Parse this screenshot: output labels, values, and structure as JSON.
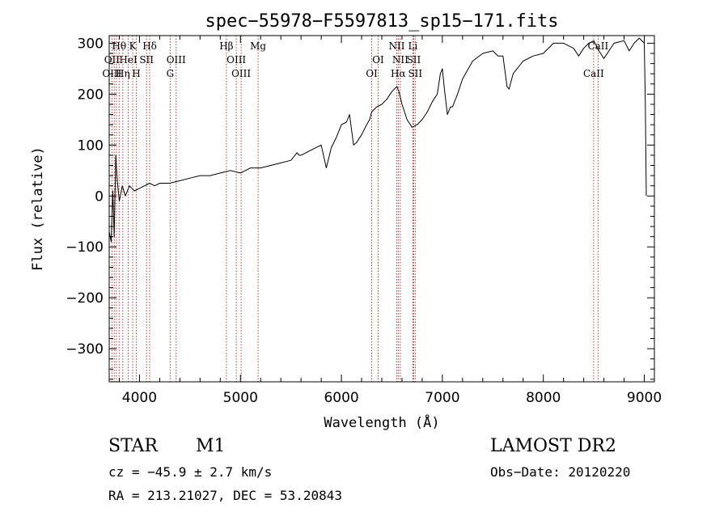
{
  "chart_data": {
    "type": "line",
    "title": "spec−55978−F5597813_sp15−171.fits",
    "xlabel": "Wavelength (Å)",
    "ylabel": "Flux (relative)",
    "xlim": [
      3700,
      9100
    ],
    "ylim": [
      -365,
      315
    ],
    "xticks": [
      4000,
      5000,
      6000,
      7000,
      8000,
      9000
    ],
    "yticks": [
      300,
      200,
      100,
      0,
      -100,
      -200,
      -300
    ],
    "ytick_labels": [
      "300",
      "200",
      "100",
      "0",
      "−100",
      "−200",
      "−300"
    ],
    "line_color": "#000000",
    "marker_color": "#c0392b",
    "series": [
      {
        "x": [
          3700,
          3720,
          3735,
          3750,
          3765,
          3780,
          3800,
          3830,
          3860,
          3900,
          3950,
          4000,
          4050,
          4100,
          4150,
          4200,
          4300,
          4400,
          4500,
          4600,
          4700,
          4800,
          4900,
          5000,
          5100,
          5200,
          5300,
          5400,
          5500,
          5560,
          5580,
          5600,
          5700,
          5800,
          5850,
          5900,
          5950,
          6000,
          6050,
          6080,
          6100,
          6120,
          6150,
          6200,
          6250,
          6280,
          6300,
          6350,
          6400,
          6450,
          6500,
          6550,
          6570,
          6600,
          6650,
          6700,
          6750,
          6800,
          6850,
          6900,
          6950,
          6980,
          7000,
          7020,
          7050,
          7080,
          7100,
          7150,
          7200,
          7300,
          7400,
          7500,
          7550,
          7600,
          7640,
          7660,
          7700,
          7800,
          7900,
          8000,
          8100,
          8200,
          8300,
          8350,
          8400,
          8450,
          8500,
          8550,
          8600,
          8700,
          8800,
          8850,
          8900,
          8950,
          9000,
          9010,
          9020
        ],
        "y": [
          -70,
          -90,
          10,
          -80,
          80,
          30,
          -10,
          20,
          0,
          20,
          10,
          15,
          20,
          25,
          20,
          25,
          25,
          30,
          35,
          40,
          40,
          45,
          50,
          45,
          55,
          55,
          60,
          65,
          70,
          85,
          80,
          80,
          90,
          100,
          55,
          95,
          115,
          140,
          145,
          160,
          130,
          100,
          105,
          120,
          140,
          150,
          165,
          175,
          180,
          190,
          205,
          215,
          205,
          180,
          150,
          135,
          140,
          150,
          165,
          185,
          200,
          240,
          250,
          210,
          160,
          175,
          175,
          200,
          230,
          265,
          280,
          285,
          275,
          275,
          215,
          210,
          240,
          265,
          275,
          280,
          300,
          300,
          290,
          275,
          290,
          300,
          305,
          285,
          270,
          300,
          305,
          285,
          300,
          310,
          300,
          180,
          0
        ]
      }
    ],
    "spectral_lines": [
      {
        "label": "Hθ",
        "x": 3798,
        "row": 1
      },
      {
        "label": "K",
        "x": 3933,
        "row": 1
      },
      {
        "label": "Hδ",
        "x": 4101,
        "row": 1
      },
      {
        "label": "Hβ",
        "x": 4861,
        "row": 1
      },
      {
        "label": "Mg",
        "x": 5175,
        "row": 1
      },
      {
        "label": "NII",
        "x": 6548,
        "row": 1
      },
      {
        "label": "Li",
        "x": 6708,
        "row": 1
      },
      {
        "label": "CaII",
        "x": 8542,
        "row": 1
      },
      {
        "label": "OII",
        "x": 3727,
        "row": 2
      },
      {
        "label": "HeI",
        "x": 3889,
        "row": 2
      },
      {
        "label": "SII",
        "x": 4070,
        "row": 2
      },
      {
        "label": "OIII",
        "x": 4363,
        "row": 2
      },
      {
        "label": "OIII",
        "x": 4959,
        "row": 2
      },
      {
        "label": "OI",
        "x": 6364,
        "row": 2
      },
      {
        "label": "NII",
        "x": 6583,
        "row": 2
      },
      {
        "label": "SII",
        "x": 6716,
        "row": 2
      },
      {
        "label": "OIII",
        "x": 3727,
        "row": 3
      },
      {
        "label": "Hη",
        "x": 3835,
        "row": 3
      },
      {
        "label": "H",
        "x": 3968,
        "row": 3
      },
      {
        "label": "G",
        "x": 4304,
        "row": 3
      },
      {
        "label": "OIII",
        "x": 5007,
        "row": 3
      },
      {
        "label": "OI",
        "x": 6300,
        "row": 3
      },
      {
        "label": "Hα",
        "x": 6563,
        "row": 3
      },
      {
        "label": "SII",
        "x": 6731,
        "row": 3
      },
      {
        "label": "CaII",
        "x": 8498,
        "row": 3
      }
    ],
    "marker_x": [
      3727,
      3750,
      3771,
      3798,
      3835,
      3889,
      3933,
      3968,
      4070,
      4101,
      4304,
      4363,
      4861,
      4959,
      5007,
      5175,
      6300,
      6364,
      6548,
      6563,
      6583,
      6708,
      6716,
      6731,
      8498,
      8542
    ]
  },
  "info": {
    "object_type": "STAR",
    "subclass": "M1",
    "survey": "LAMOST DR2",
    "cz": "cz = −45.9 ± 2.7 km/s",
    "obs_date": "Obs−Date: 20120220",
    "coords": "RA = 213.21027, DEC =  53.20843"
  }
}
